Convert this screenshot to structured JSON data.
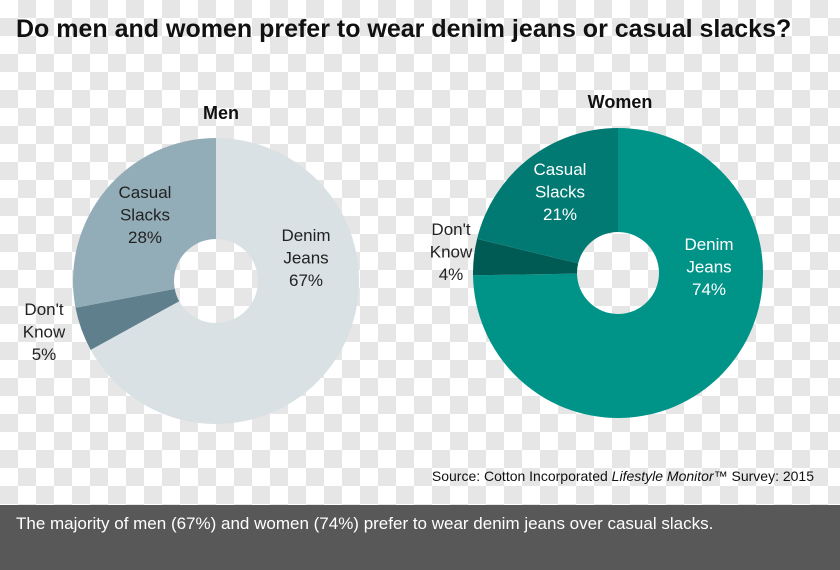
{
  "title": "Do men and women prefer to wear denim jeans or casual slacks?",
  "chart_data": [
    {
      "type": "pie",
      "title": "Men",
      "slices": [
        {
          "label": [
            "Denim",
            "Jeans",
            "67%"
          ],
          "value": 67,
          "color": "#d9e1e4",
          "text_color": "#222222"
        },
        {
          "label": [
            "Don't",
            "Know",
            "5%"
          ],
          "value": 5,
          "color": "#5f7f8d",
          "text_color": "#222222"
        },
        {
          "label": [
            "Casual",
            "Slacks",
            "28%"
          ],
          "value": 28,
          "color": "#93adb8",
          "text_color": "#222222"
        }
      ]
    },
    {
      "type": "pie",
      "title": "Women",
      "slices": [
        {
          "label": [
            "Denim",
            "Jeans",
            "74%"
          ],
          "value": 74,
          "color": "#009488",
          "text_color": "#ffffff"
        },
        {
          "label": [
            "Don't",
            "Know",
            "4%"
          ],
          "value": 4,
          "color": "#005b55",
          "text_color": "#222222"
        },
        {
          "label": [
            "Casual",
            "Slacks",
            "21%"
          ],
          "value": 21,
          "color": "#007a72",
          "text_color": "#ffffff"
        }
      ]
    }
  ],
  "source": {
    "prefix": "Source: Cotton Incorporated ",
    "italic": "Lifestyle Monitor",
    "suffix": "™ Survey: 2015"
  },
  "footer": "The majority of men (67%) and women (74%) prefer to wear denim jeans over casual slacks."
}
